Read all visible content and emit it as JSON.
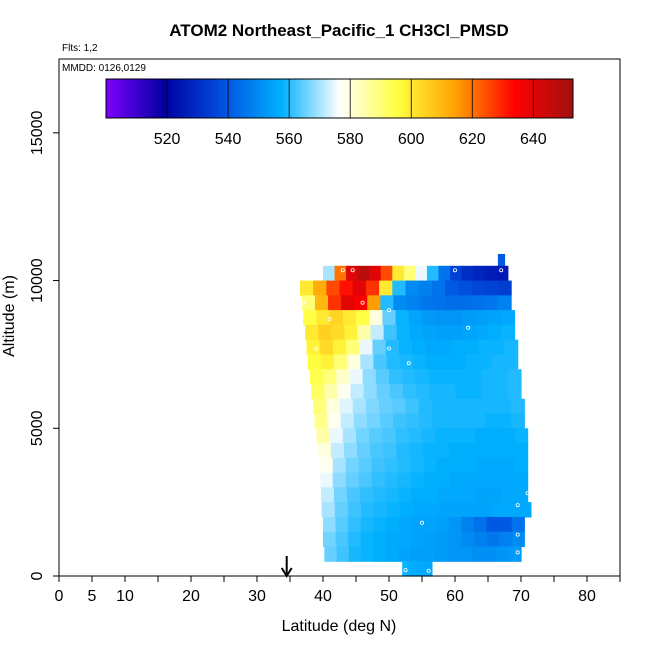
{
  "chart_data": {
    "type": "heatmap",
    "title": "ATOM2 Northeast_Pacific_1 CH3Cl_PMSD",
    "flights_note": "Flts: 1,2",
    "date_note": "MMDD: 0126,0129",
    "xlabel": "Latitude (deg N)",
    "ylabel": "Altitude (m)",
    "xlim": [
      0,
      85
    ],
    "ylim": [
      0,
      17500
    ],
    "x_ticks": [
      0,
      5,
      10,
      20,
      30,
      40,
      50,
      60,
      70,
      80
    ],
    "x_minor_ticks": [
      15,
      25,
      35,
      45,
      55,
      65,
      75,
      85
    ],
    "y_ticks": [
      0,
      5000,
      10000,
      15000
    ],
    "colorbar": {
      "range": [
        500,
        653
      ],
      "ticks": [
        520,
        540,
        560,
        580,
        600,
        620,
        640
      ],
      "colors": [
        "#7f00ff",
        "#0000a0",
        "#0050e0",
        "#00b0ff",
        "#ffffff",
        "#ffff40",
        "#ffa000",
        "#ff0000",
        "#a01010"
      ]
    },
    "marker_latitude": 34.5,
    "rows": [
      {
        "alt": 10650,
        "lat_start": 66.5,
        "lat_end": 67.5,
        "values": [
          540
        ]
      },
      {
        "alt": 10250,
        "lat_start": 40,
        "lat_end": 68,
        "values": [
          570,
          620,
          640,
          648,
          640,
          625,
          600,
          590,
          575,
          560,
          545,
          535,
          530,
          528,
          526,
          525
        ]
      },
      {
        "alt": 9750,
        "lat_start": 36.5,
        "lat_end": 68.5,
        "values": [
          600,
          612,
          625,
          632,
          640,
          628,
          600,
          560,
          550,
          548,
          545,
          540,
          538,
          536,
          535,
          534
        ]
      },
      {
        "alt": 9250,
        "lat_start": 36.8,
        "lat_end": 68.5,
        "values": [
          590,
          610,
          628,
          640,
          635,
          615,
          560,
          550,
          548,
          546,
          545,
          544,
          544,
          545,
          546,
          548
        ]
      },
      {
        "alt": 8750,
        "lat_start": 37,
        "lat_end": 69,
        "values": [
          595,
          600,
          604,
          600,
          595,
          580,
          565,
          558,
          555,
          553,
          552,
          552,
          553,
          554,
          555,
          556
        ]
      },
      {
        "alt": 8250,
        "lat_start": 37.3,
        "lat_end": 69,
        "values": [
          600,
          605,
          603,
          598,
          585,
          572,
          562,
          558,
          556,
          555,
          554,
          554,
          555,
          556,
          557,
          558
        ]
      },
      {
        "alt": 7750,
        "lat_start": 37.5,
        "lat_end": 69.5,
        "values": [
          598,
          603,
          598,
          590,
          575,
          565,
          560,
          558,
          557,
          556,
          556,
          557,
          557,
          558,
          558,
          559
        ]
      },
      {
        "alt": 7250,
        "lat_start": 37.7,
        "lat_end": 69.5,
        "values": [
          596,
          598,
          590,
          580,
          570,
          563,
          560,
          559,
          558,
          557,
          557,
          557,
          558,
          558,
          559,
          559
        ]
      },
      {
        "alt": 6750,
        "lat_start": 38,
        "lat_end": 70,
        "values": [
          594,
          590,
          582,
          575,
          568,
          564,
          561,
          560,
          559,
          558,
          558,
          558,
          558,
          559,
          559,
          560
        ]
      },
      {
        "alt": 6250,
        "lat_start": 38.2,
        "lat_end": 70,
        "values": [
          592,
          585,
          578,
          572,
          568,
          565,
          563,
          561,
          560,
          559,
          559,
          558,
          558,
          559,
          559,
          560
        ]
      },
      {
        "alt": 5750,
        "lat_start": 38.5,
        "lat_end": 70.5,
        "values": [
          590,
          580,
          574,
          570,
          567,
          565,
          564,
          562,
          560,
          559,
          559,
          559,
          559,
          559,
          559,
          560
        ]
      },
      {
        "alt": 5250,
        "lat_start": 38.7,
        "lat_end": 70.5,
        "values": [
          588,
          578,
          572,
          568,
          566,
          564,
          562,
          561,
          560,
          559,
          559,
          559,
          559,
          558,
          558,
          559
        ]
      },
      {
        "alt": 4750,
        "lat_start": 39,
        "lat_end": 71,
        "values": [
          585,
          575,
          570,
          566,
          564,
          563,
          561,
          560,
          559,
          558,
          558,
          558,
          557,
          557,
          557,
          558
        ]
      },
      {
        "alt": 4250,
        "lat_start": 39.2,
        "lat_end": 71,
        "values": [
          580,
          572,
          568,
          565,
          563,
          562,
          560,
          559,
          558,
          558,
          557,
          557,
          557,
          557,
          557,
          557
        ]
      },
      {
        "alt": 3750,
        "lat_start": 39.5,
        "lat_end": 71,
        "values": [
          578,
          570,
          566,
          564,
          562,
          561,
          560,
          559,
          558,
          557,
          557,
          557,
          556,
          556,
          556,
          557
        ]
      },
      {
        "alt": 3250,
        "lat_start": 39.5,
        "lat_end": 71,
        "values": [
          575,
          568,
          565,
          563,
          561,
          560,
          559,
          558,
          557,
          557,
          556,
          556,
          556,
          556,
          556,
          556
        ]
      },
      {
        "alt": 2750,
        "lat_start": 39.7,
        "lat_end": 71,
        "values": [
          572,
          566,
          563,
          561,
          560,
          559,
          558,
          557,
          557,
          556,
          556,
          556,
          555,
          555,
          556,
          556
        ]
      },
      {
        "alt": 2250,
        "lat_start": 39.8,
        "lat_end": 71.5,
        "values": [
          570,
          565,
          562,
          560,
          559,
          558,
          557,
          556,
          556,
          555,
          555,
          555,
          555,
          556,
          556,
          556
        ]
      },
      {
        "alt": 1750,
        "lat_start": 40,
        "lat_end": 70.5,
        "values": [
          568,
          564,
          561,
          559,
          558,
          557,
          556,
          555,
          555,
          554,
          552,
          548,
          545,
          540,
          540,
          545
        ]
      },
      {
        "alt": 1250,
        "lat_start": 40,
        "lat_end": 70.5,
        "values": [
          566,
          563,
          560,
          558,
          557,
          556,
          556,
          555,
          554,
          553,
          552,
          550,
          548,
          546,
          548,
          550
        ]
      },
      {
        "alt": 750,
        "lat_start": 40.2,
        "lat_end": 70,
        "values": [
          565,
          562,
          559,
          558,
          557,
          556,
          555,
          554,
          554,
          553,
          552,
          552,
          551,
          551,
          552,
          553
        ]
      },
      {
        "alt": 250,
        "lat_start": 52,
        "lat_end": 56.5,
        "values": [
          558,
          557,
          556,
          556
        ]
      }
    ],
    "sample_points": [
      [
        43,
        10350
      ],
      [
        44.5,
        10350
      ],
      [
        60,
        10350
      ],
      [
        67,
        10350
      ],
      [
        37,
        9250
      ],
      [
        46,
        9250
      ],
      [
        50,
        9000
      ],
      [
        41,
        8700
      ],
      [
        48,
        8700
      ],
      [
        62,
        8400
      ],
      [
        39,
        7700
      ],
      [
        50,
        7700
      ],
      [
        53,
        7200
      ],
      [
        38,
        6100
      ],
      [
        38.5,
        4800
      ],
      [
        40,
        4000
      ],
      [
        39.5,
        3200
      ],
      [
        71,
        2800
      ],
      [
        69.5,
        2400
      ],
      [
        55,
        1800
      ],
      [
        69.5,
        1400
      ],
      [
        69.5,
        800
      ],
      [
        56,
        180
      ],
      [
        52.5,
        200
      ]
    ]
  }
}
